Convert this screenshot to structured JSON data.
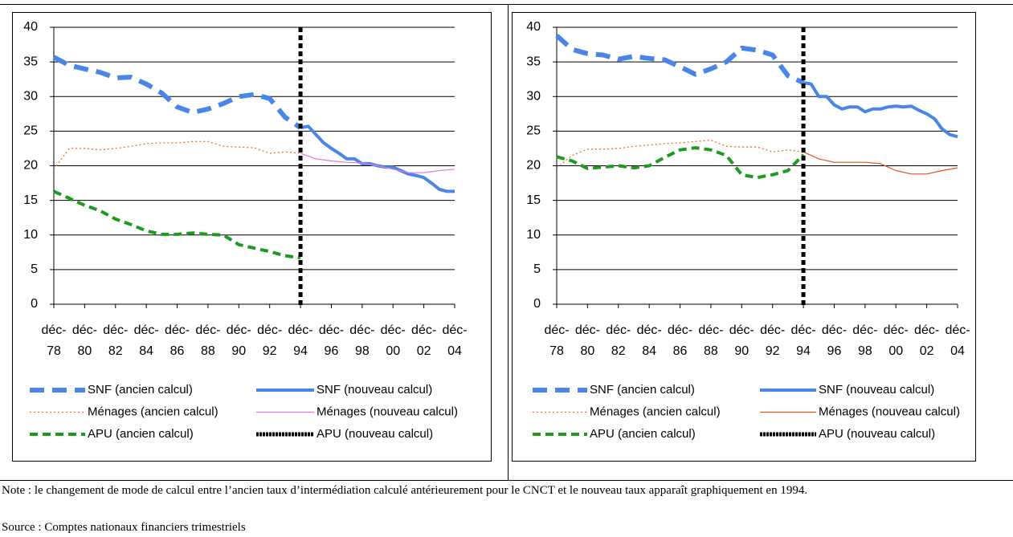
{
  "chart_data": [
    {
      "type": "line",
      "ylim": [
        0,
        40
      ],
      "yticks": [
        0,
        5,
        10,
        15,
        20,
        25,
        30,
        35,
        40
      ],
      "grid": true,
      "xlim": [
        1978,
        2004
      ],
      "xticks": [
        {
          "value": 1978,
          "label": "déc-78"
        },
        {
          "value": 1980,
          "label": "déc-80"
        },
        {
          "value": 1982,
          "label": "déc-82"
        },
        {
          "value": 1984,
          "label": "déc-84"
        },
        {
          "value": 1986,
          "label": "déc-86"
        },
        {
          "value": 1988,
          "label": "déc-88"
        },
        {
          "value": 1990,
          "label": "déc-90"
        },
        {
          "value": 1992,
          "label": "déc-92"
        },
        {
          "value": 1994,
          "label": "déc-94"
        },
        {
          "value": 1996,
          "label": "déc-96"
        },
        {
          "value": 1998,
          "label": "déc-98"
        },
        {
          "value": 2000,
          "label": "déc-00"
        },
        {
          "value": 2002,
          "label": "déc-02"
        },
        {
          "value": 2004,
          "label": "déc-04"
        }
      ],
      "marker_line": 1994,
      "series": [
        {
          "name": "SNF (ancien calcul)",
          "color": "#4a86e8",
          "style": "dashed",
          "x": [
            1978,
            1979,
            1980,
            1981,
            1982,
            1983,
            1984,
            1985,
            1986,
            1987,
            1988,
            1989,
            1990,
            1991,
            1992,
            1993,
            1994
          ],
          "values": [
            35.7,
            34.5,
            34,
            33.5,
            32.7,
            32.8,
            31.8,
            30.5,
            28.5,
            27.7,
            28.2,
            29,
            30,
            30.3,
            29.7,
            27,
            25.5
          ]
        },
        {
          "name": "SNF (nouveau calcul)",
          "color": "#4a86e8",
          "style": "solid",
          "x": [
            1994,
            1994.5,
            1995,
            1995.5,
            1996,
            1996.5,
            1997,
            1997.5,
            1998,
            1998.5,
            1999,
            1999.5,
            2000,
            2000.5,
            2001,
            2001.5,
            2002,
            2002.5,
            2003,
            2003.5,
            2004
          ],
          "values": [
            25.5,
            25.7,
            24.5,
            23.3,
            22.5,
            21.8,
            21,
            21,
            20.3,
            20.3,
            20,
            19.8,
            19.8,
            19.3,
            18.8,
            18.6,
            18.3,
            17.5,
            16.6,
            16.3,
            16.3
          ]
        },
        {
          "name": "Ménages (ancien calcul)",
          "color": "#f07030",
          "style": "dotted",
          "x": [
            1978,
            1979,
            1980,
            1981,
            1982,
            1983,
            1984,
            1985,
            1986,
            1987,
            1988,
            1989,
            1990,
            1991,
            1992,
            1993,
            1994
          ],
          "values": [
            19.5,
            22.5,
            22.5,
            22.3,
            22.5,
            22.8,
            23.2,
            23.3,
            23.3,
            23.5,
            23.5,
            22.8,
            22.7,
            22.6,
            21.8,
            22,
            21.8
          ]
        },
        {
          "name": "Ménages (nouveau calcul)",
          "color": "#e07ae0",
          "style": "thin",
          "x": [
            1994,
            1995,
            1996,
            1997,
            1998,
            1999,
            2000,
            2001,
            2002,
            2003,
            2004
          ],
          "values": [
            21.8,
            21,
            20.7,
            20.5,
            20.4,
            20,
            19.5,
            19,
            19,
            19.3,
            19.5
          ]
        },
        {
          "name": "APU (ancien calcul)",
          "color": "#1e9a1e",
          "style": "dashed-small",
          "x": [
            1978,
            1979,
            1980,
            1981,
            1982,
            1983,
            1984,
            1985,
            1986,
            1987,
            1988,
            1989,
            1990,
            1991,
            1992,
            1993,
            1994
          ],
          "values": [
            16.3,
            15.3,
            14.3,
            13.5,
            12.3,
            11.5,
            10.6,
            10.1,
            10.1,
            10.3,
            10.1,
            10,
            8.6,
            8.1,
            7.6,
            7,
            6.7
          ]
        },
        {
          "name": "APU (nouveau calcul)",
          "color": "#000000",
          "style": "checker",
          "x": [],
          "values": []
        }
      ]
    },
    {
      "type": "line",
      "ylim": [
        0,
        40
      ],
      "yticks": [
        0,
        5,
        10,
        15,
        20,
        25,
        30,
        35,
        40
      ],
      "grid": true,
      "xlim": [
        1978,
        2004
      ],
      "xticks": [
        {
          "value": 1978,
          "label": "déc-78"
        },
        {
          "value": 1980,
          "label": "déc-80"
        },
        {
          "value": 1982,
          "label": "déc-82"
        },
        {
          "value": 1984,
          "label": "déc-84"
        },
        {
          "value": 1986,
          "label": "déc-86"
        },
        {
          "value": 1988,
          "label": "déc-88"
        },
        {
          "value": 1990,
          "label": "déc-90"
        },
        {
          "value": 1992,
          "label": "déc-92"
        },
        {
          "value": 1994,
          "label": "déc-94"
        },
        {
          "value": 1996,
          "label": "déc-96"
        },
        {
          "value": 1998,
          "label": "déc-98"
        },
        {
          "value": 2000,
          "label": "déc-00"
        },
        {
          "value": 2002,
          "label": "déc-02"
        },
        {
          "value": 2004,
          "label": "déc-04"
        }
      ],
      "marker_line": 1994,
      "series": [
        {
          "name": "SNF (ancien calcul)",
          "color": "#4a86e8",
          "style": "dashed",
          "x": [
            1978,
            1979,
            1980,
            1981,
            1982,
            1983,
            1984,
            1985,
            1986,
            1987,
            1988,
            1989,
            1990,
            1991,
            1992,
            1993,
            1994
          ],
          "values": [
            38.8,
            36.8,
            36.2,
            36,
            35.4,
            35.8,
            35.5,
            35.3,
            34.3,
            33.2,
            34,
            35,
            37,
            36.7,
            36,
            33,
            32
          ]
        },
        {
          "name": "SNF (nouveau calcul)",
          "color": "#4a86e8",
          "style": "solid",
          "x": [
            1994,
            1994.5,
            1995,
            1995.5,
            1996,
            1996.5,
            1997,
            1997.5,
            1998,
            1998.5,
            1999,
            1999.5,
            2000,
            2000.5,
            2001,
            2001.5,
            2002,
            2002.5,
            2003,
            2003.5,
            2004
          ],
          "values": [
            32,
            31.8,
            30,
            30,
            28.8,
            28.2,
            28.5,
            28.5,
            27.8,
            28.2,
            28.2,
            28.5,
            28.6,
            28.5,
            28.6,
            28,
            27.5,
            26.8,
            25.3,
            24.5,
            24.2
          ]
        },
        {
          "name": "Ménages (ancien calcul)",
          "color": "#f07030",
          "style": "dotted",
          "x": [
            1978,
            1979,
            1980,
            1981,
            1982,
            1983,
            1984,
            1985,
            1986,
            1987,
            1988,
            1989,
            1990,
            1991,
            1992,
            1993,
            1994
          ],
          "values": [
            19.7,
            21.5,
            22.4,
            22.4,
            22.5,
            22.8,
            23,
            23.2,
            23.3,
            23.5,
            23.7,
            22.8,
            22.7,
            22.7,
            22,
            22.3,
            22
          ]
        },
        {
          "name": "Ménages (nouveau calcul)",
          "color": "#e8501e",
          "style": "thin",
          "x": [
            1994,
            1995,
            1996,
            1997,
            1998,
            1999,
            2000,
            2001,
            2002,
            2003,
            2004
          ],
          "values": [
            22,
            21,
            20.5,
            20.5,
            20.5,
            20.3,
            19.3,
            18.8,
            18.8,
            19.3,
            19.7
          ]
        },
        {
          "name": "APU (ancien calcul)",
          "color": "#1e9a1e",
          "style": "dashed-small",
          "x": [
            1978,
            1979,
            1980,
            1981,
            1982,
            1983,
            1984,
            1985,
            1986,
            1987,
            1988,
            1989,
            1990,
            1991,
            1992,
            1993,
            1994
          ],
          "values": [
            21.3,
            20.7,
            19.6,
            19.8,
            20,
            19.7,
            20,
            21.2,
            22.3,
            22.6,
            22.3,
            21.5,
            18.7,
            18.3,
            18.7,
            19.3,
            21.6
          ]
        },
        {
          "name": "APU (nouveau calcul)",
          "color": "#000000",
          "style": "checker",
          "x": [],
          "values": []
        }
      ]
    }
  ],
  "note": "Note : le changement de mode de calcul entre l’ancien taux d’intermédiation calculé antérieurement pour le CNCT et le nouveau taux apparaît graphiquement en 1994.",
  "source": "Source : Comptes nationaux financiers trimestriels"
}
